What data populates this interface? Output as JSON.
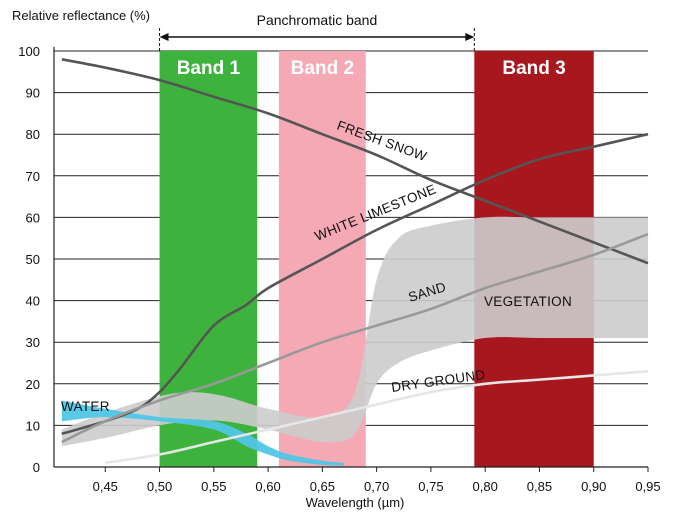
{
  "chart_data": {
    "type": "line",
    "ylabel": "Relative reflectance (%)",
    "xlabel": "Wavelength (µm)",
    "xlim": [
      0.4,
      0.95
    ],
    "ylim": [
      0,
      100
    ],
    "x_ticks": [
      0.45,
      0.5,
      0.55,
      0.6,
      0.65,
      0.7,
      0.75,
      0.8,
      0.85,
      0.9,
      0.95
    ],
    "x_tick_labels": [
      "0,45",
      "0,50",
      "0,55",
      "0,60",
      "0,65",
      "0,70",
      "0,75",
      "0,80",
      "0,85",
      "0,90",
      "0,95"
    ],
    "y_ticks": [
      0,
      10,
      20,
      30,
      40,
      50,
      60,
      70,
      80,
      90,
      100
    ],
    "y_tick_labels": [
      "0",
      "10",
      "20",
      "30",
      "40",
      "50",
      "60",
      "70",
      "80",
      "90",
      "100"
    ],
    "grid": "horizontal",
    "bands": [
      {
        "label": "Band 1",
        "x_start": 0.5,
        "x_end": 0.59,
        "color": "#3db33d"
      },
      {
        "label": "Band 2",
        "x_start": 0.61,
        "x_end": 0.69,
        "color": "#f4a9b4"
      },
      {
        "label": "Band 3",
        "x_start": 0.79,
        "x_end": 0.9,
        "color": "#a8161e"
      }
    ],
    "panchromatic": {
      "label": "Panchromatic band",
      "x_start": 0.5,
      "x_end": 0.79
    },
    "series": [
      {
        "name": "FRESH SNOW",
        "color": "#555555",
        "x": [
          0.41,
          0.45,
          0.5,
          0.55,
          0.6,
          0.65,
          0.7,
          0.75,
          0.8,
          0.85,
          0.9,
          0.95
        ],
        "y": [
          98,
          96,
          93,
          89,
          85,
          80,
          75,
          69,
          64,
          59,
          54,
          49
        ]
      },
      {
        "name": "WHITE LIMESTONE",
        "color": "#555555",
        "x": [
          0.41,
          0.45,
          0.48,
          0.5,
          0.52,
          0.55,
          0.58,
          0.6,
          0.65,
          0.7,
          0.75,
          0.8,
          0.85,
          0.9,
          0.95
        ],
        "y": [
          8,
          11,
          14,
          18,
          24,
          34,
          39,
          43,
          50,
          57,
          63,
          69,
          74,
          77,
          80
        ]
      },
      {
        "name": "SAND",
        "color": "#999999",
        "x": [
          0.41,
          0.45,
          0.5,
          0.55,
          0.6,
          0.65,
          0.7,
          0.75,
          0.8,
          0.85,
          0.9,
          0.95
        ],
        "y": [
          6,
          11,
          16,
          20,
          25,
          30,
          34,
          38,
          43,
          47,
          51,
          56
        ]
      },
      {
        "name": "DRY GROUND",
        "color": "#e6e6e6",
        "x": [
          0.45,
          0.5,
          0.55,
          0.6,
          0.65,
          0.7,
          0.75,
          0.8,
          0.85,
          0.9,
          0.95
        ],
        "y": [
          1,
          3,
          6,
          9,
          12,
          15,
          18,
          20,
          21,
          22,
          23
        ]
      }
    ],
    "areas": [
      {
        "name": "VEGETATION",
        "color": "#cccccc",
        "x": [
          0.41,
          0.45,
          0.5,
          0.53,
          0.56,
          0.6,
          0.65,
          0.68,
          0.7,
          0.72,
          0.75,
          0.8,
          0.85,
          0.9,
          0.95
        ],
        "upper": [
          9,
          13,
          17,
          18,
          17,
          14,
          12,
          18,
          45,
          55,
          58,
          60,
          60,
          60,
          60
        ],
        "lower": [
          5,
          7,
          10,
          11,
          11,
          9,
          6,
          8,
          20,
          25,
          28,
          31,
          31,
          31,
          31
        ]
      },
      {
        "name": "WATER",
        "color": "#4fc6e6",
        "x": [
          0.41,
          0.45,
          0.5,
          0.55,
          0.58,
          0.6,
          0.62,
          0.65,
          0.67
        ],
        "upper": [
          16,
          14,
          12,
          11,
          8,
          5,
          3,
          1.5,
          1
        ],
        "lower": [
          11,
          12,
          11,
          9,
          5,
          3,
          1.5,
          0.5,
          0.3
        ]
      }
    ]
  }
}
